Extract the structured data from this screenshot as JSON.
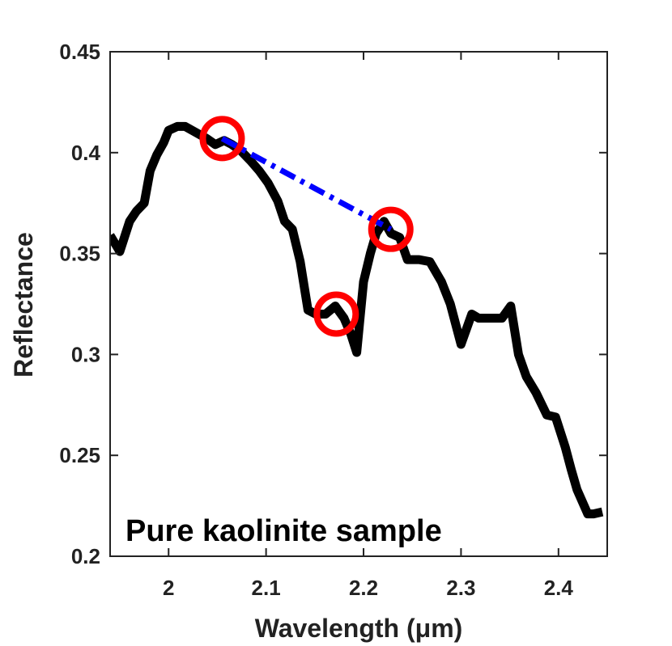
{
  "chart_data": {
    "type": "line",
    "title": "",
    "xlabel": "Wavelength (μm)",
    "ylabel": "Reflectance",
    "xlim": [
      1.94,
      2.45
    ],
    "ylim": [
      0.2,
      0.45
    ],
    "xticks": [
      2,
      2.1,
      2.2,
      2.3,
      2.4
    ],
    "xtick_labels": [
      "2",
      "2.1",
      "2.2",
      "2.3",
      "2.4"
    ],
    "yticks": [
      0.2,
      0.25,
      0.3,
      0.35,
      0.4,
      0.45
    ],
    "ytick_labels": [
      "0.2",
      "0.25",
      "0.3",
      "0.35",
      "0.4",
      "0.45"
    ],
    "grid": false,
    "annotation": "Pure kaolinite sample",
    "series": [
      {
        "name": "Spectrum",
        "color": "#000000",
        "x": [
          1.94,
          1.95,
          1.96,
          1.967,
          1.975,
          1.981,
          1.988,
          1.995,
          2.0,
          2.009,
          2.017,
          2.028,
          2.039,
          2.048,
          2.057,
          2.065,
          2.074,
          2.084,
          2.093,
          2.102,
          2.112,
          2.119,
          2.127,
          2.135,
          2.143,
          2.151,
          2.161,
          2.171,
          2.18,
          2.187,
          2.193,
          2.2,
          2.207,
          2.213,
          2.221,
          2.228,
          2.237,
          2.245,
          2.251,
          2.257,
          2.268,
          2.28,
          2.289,
          2.3,
          2.311,
          2.318,
          2.326,
          2.334,
          2.342,
          2.351,
          2.359,
          2.367,
          2.377,
          2.388,
          2.397,
          2.407,
          2.413,
          2.419,
          2.43,
          2.436,
          2.445
        ],
        "y": [
          0.359,
          0.351,
          0.366,
          0.371,
          0.375,
          0.391,
          0.399,
          0.405,
          0.411,
          0.413,
          0.413,
          0.41,
          0.407,
          0.404,
          0.406,
          0.404,
          0.401,
          0.396,
          0.391,
          0.385,
          0.376,
          0.366,
          0.362,
          0.346,
          0.322,
          0.32,
          0.32,
          0.324,
          0.318,
          0.31,
          0.301,
          0.336,
          0.35,
          0.36,
          0.366,
          0.36,
          0.358,
          0.347,
          0.347,
          0.347,
          0.346,
          0.336,
          0.325,
          0.305,
          0.32,
          0.318,
          0.318,
          0.318,
          0.318,
          0.324,
          0.3,
          0.289,
          0.281,
          0.27,
          0.269,
          0.254,
          0.243,
          0.233,
          0.221,
          0.221,
          0.222
        ]
      },
      {
        "name": "Continuum",
        "color": "#0000ff",
        "style": "dash-dot",
        "x": [
          2.055,
          2.228
        ],
        "y": [
          0.407,
          0.362
        ]
      }
    ],
    "markers": [
      {
        "name": "left-shoulder",
        "x": 2.055,
        "y": 0.407,
        "color": "#ff0000"
      },
      {
        "name": "absorption-minimum",
        "x": 2.172,
        "y": 0.32,
        "color": "#ff0000"
      },
      {
        "name": "right-shoulder",
        "x": 2.228,
        "y": 0.362,
        "color": "#ff0000"
      }
    ]
  }
}
